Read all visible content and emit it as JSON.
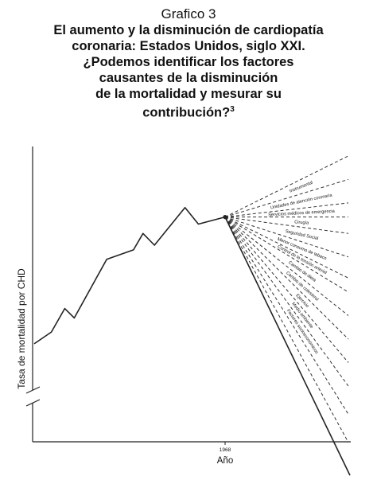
{
  "caption": {
    "label": "Grafico 3",
    "title_lines": [
      "El aumento y la disminución de cardiopatía",
      "coronaria: Estados Unidos, siglo XXI.",
      "¿Podemos identificar los factores",
      "causantes de la disminución",
      "de la mortalidad y mesurar su",
      "contribución?"
    ],
    "footnote_mark": "3"
  },
  "chart_data": {
    "type": "line",
    "xlabel": "Año",
    "ylabel": "Tasa de mortalidad por CHD",
    "x_ticks": [
      "1968"
    ],
    "grid": false,
    "series": [
      {
        "values": [
          [
            0.0,
            0.18
          ],
          [
            0.09,
            0.23
          ],
          [
            0.16,
            0.33
          ],
          [
            0.21,
            0.29
          ],
          [
            0.38,
            0.54
          ],
          [
            0.52,
            0.58
          ],
          [
            0.57,
            0.65
          ],
          [
            0.63,
            0.6
          ],
          [
            0.79,
            0.76
          ],
          [
            0.86,
            0.69
          ],
          [
            1.0,
            0.72
          ]
        ]
      }
    ],
    "fan_origin": [
      1.0,
      0.72
    ],
    "fan_ends": [
      0.98,
      0.88,
      0.78,
      0.72,
      0.65,
      0.55,
      0.46,
      0.4,
      0.3,
      0.2,
      0.1,
      0.0,
      -0.12,
      -0.24
    ],
    "decline_end": -0.38,
    "factors": [
      "Instrumental",
      "Unidades de atención coronaria",
      "Servicios médicos de emergencia",
      "Cirugía",
      "Seguridad Social",
      "Menor consumo de tabaco",
      "Control de la tensión arterial",
      "Cambio de dieta",
      "Cambio de colesterol",
      "Ejercicio",
      "Medio ambiente",
      "Factores socioeconómicos"
    ]
  }
}
